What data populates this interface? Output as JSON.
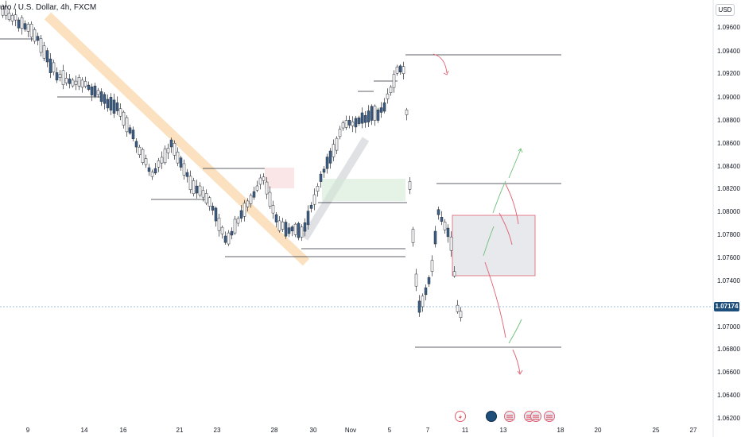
{
  "header": {
    "symbol_title": "uro / U.S. Dollar, 4h, FXCM",
    "currency_button": "USD"
  },
  "price_axis": {
    "labels": [
      "1.09600",
      "1.09400",
      "1.09200",
      "1.09000",
      "1.08800",
      "1.08600",
      "1.08400",
      "1.08200",
      "1.08000",
      "1.07800",
      "1.07600",
      "1.07400",
      "1.07000",
      "1.06800",
      "1.06600",
      "1.06400",
      "1.06200"
    ],
    "current_price": "1.07174"
  },
  "time_axis": {
    "labels": [
      "9",
      "14",
      "16",
      "21",
      "23",
      "28",
      "30",
      "Nov",
      "5",
      "7",
      "11",
      "13",
      "18",
      "20",
      "25",
      "27"
    ]
  },
  "colors": {
    "candle": "#3b5f86",
    "wick": "#2a2e39",
    "trendline_band": "#f7c98b",
    "supply_zone": "#f3c7c7",
    "demand_zone": "#cfe9d3",
    "projection_box_border": "#e06070",
    "bullish_arrow": "#6cbf7a",
    "bearish_arrow": "#e06070",
    "price_tag": "#1e4e7a"
  },
  "events": {
    "items": [
      {
        "icon": "lightning-icon"
      },
      {
        "icon": "earnings-icon"
      },
      {
        "icon": "us-flag-icon"
      },
      {
        "icon": "us-flag-icon"
      },
      {
        "icon": "us-flag-icon"
      },
      {
        "icon": "us-flag-icon"
      }
    ]
  }
}
